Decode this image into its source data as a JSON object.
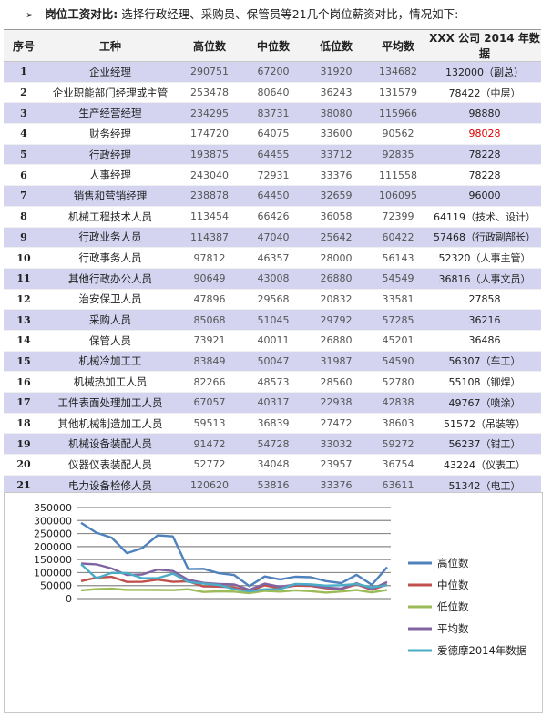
{
  "heading": {
    "bullet": "➢",
    "label": "岗位工资对比:",
    "text": "选择行政经理、采购员、保管员等21几个岗位薪资对比，情况如下:"
  },
  "table": {
    "headers": [
      "序号",
      "工种",
      "高位数",
      "中位数",
      "低位数",
      "平均数",
      "XXX 公司 2014 年数据"
    ],
    "rows": [
      [
        "1",
        "企业经理",
        "290751",
        "67200",
        "31920",
        "134682",
        "132000（副总）"
      ],
      [
        "2",
        "企业职能部门经理或主管",
        "253478",
        "80640",
        "36243",
        "131579",
        "78422（中层）"
      ],
      [
        "3",
        "生产经营经理",
        "234295",
        "83731",
        "38080",
        "115966",
        "98880"
      ],
      [
        "4",
        "财务经理",
        "174720",
        "64075",
        "33600",
        "90562",
        "98028"
      ],
      [
        "5",
        "行政经理",
        "193875",
        "64455",
        "33712",
        "92835",
        "78228"
      ],
      [
        "6",
        "人事经理",
        "243040",
        "72931",
        "33376",
        "111558",
        "78228"
      ],
      [
        "7",
        "销售和营销经理",
        "238878",
        "64450",
        "32659",
        "106095",
        "96000"
      ],
      [
        "8",
        "机械工程技术人员",
        "113454",
        "66426",
        "36058",
        "72399",
        "64119（技术、设计）"
      ],
      [
        "9",
        "行政业务人员",
        "114387",
        "47040",
        "25642",
        "60422",
        "57468（行政副部长）"
      ],
      [
        "10",
        "行政事务人员",
        "97812",
        "46357",
        "28000",
        "56143",
        "52320（人事主管）"
      ],
      [
        "11",
        "其他行政办公人员",
        "90649",
        "43008",
        "26880",
        "54549",
        "36816（人事文员）"
      ],
      [
        "12",
        "治安保卫人员",
        "47896",
        "29568",
        "20832",
        "33581",
        "27858"
      ],
      [
        "13",
        "采购人员",
        "85068",
        "51045",
        "29792",
        "57285",
        "36216"
      ],
      [
        "14",
        "保管人员",
        "73921",
        "40011",
        "26880",
        "45201",
        "36486"
      ],
      [
        "15",
        "机械冷加工工",
        "83849",
        "50047",
        "31987",
        "54590",
        "56307（车工）"
      ],
      [
        "16",
        "机械热加工人员",
        "82266",
        "48573",
        "28560",
        "52780",
        "55108（铆焊）"
      ],
      [
        "17",
        "工件表面处理加工人员",
        "67057",
        "40317",
        "22938",
        "42838",
        "49767（喷涂）"
      ],
      [
        "18",
        "其他机械制造加工人员",
        "59513",
        "36839",
        "27472",
        "38603",
        "51572（吊装等）"
      ],
      [
        "19",
        "机械设备装配人员",
        "91472",
        "54728",
        "33032",
        "59272",
        "56237（钳工）"
      ],
      [
        "20",
        "仪器仪表装配人员",
        "52772",
        "34048",
        "23957",
        "36754",
        "43224（仪表工）"
      ],
      [
        "21",
        "电力设备检修人员",
        "120620",
        "53816",
        "33376",
        "63611",
        "51342（电工）"
      ]
    ],
    "highlight_cell": {
      "row": 4,
      "col": 7,
      "color": "#e00000"
    },
    "odd_row_color": "#d4d4f1"
  },
  "chart_data": {
    "type": "line",
    "title": "",
    "xlabel": "",
    "ylabel": "",
    "ylim": [
      0,
      350000
    ],
    "yticks": [
      0,
      50000,
      100000,
      150000,
      200000,
      250000,
      300000,
      350000
    ],
    "x_count": 21,
    "grid": "horizontal",
    "legend_position": "right",
    "series": [
      {
        "name": "高位数",
        "color": "#4f81bd",
        "values": [
          290751,
          253478,
          234295,
          174720,
          193875,
          243040,
          238878,
          113454,
          114387,
          97812,
          90649,
          47896,
          85068,
          73921,
          83849,
          82266,
          67057,
          59513,
          91472,
          52772,
          120620
        ]
      },
      {
        "name": "中位数",
        "color": "#c0504d",
        "values": [
          67200,
          80640,
          83731,
          64075,
          64455,
          72931,
          64450,
          66426,
          47040,
          46357,
          43008,
          29568,
          51045,
          40011,
          50047,
          48573,
          40317,
          36839,
          54728,
          34048,
          53816
        ]
      },
      {
        "name": "低位数",
        "color": "#9bbb59",
        "values": [
          31920,
          36243,
          38080,
          33600,
          33712,
          33376,
          32659,
          36058,
          25642,
          28000,
          26880,
          20832,
          29792,
          26880,
          31987,
          28560,
          22938,
          27472,
          33032,
          23957,
          33376
        ]
      },
      {
        "name": "平均数",
        "color": "#8064a2",
        "values": [
          134682,
          131579,
          115966,
          90562,
          92835,
          111558,
          106095,
          72399,
          60422,
          56143,
          54549,
          33581,
          57285,
          45201,
          54590,
          52780,
          42838,
          38603,
          59272,
          36754,
          63611
        ]
      },
      {
        "name": "爱德摩2014年数据",
        "color": "#4bacc6",
        "values": [
          132000,
          78422,
          98880,
          98028,
          78228,
          78228,
          96000,
          64119,
          57468,
          52320,
          36816,
          27858,
          36216,
          36486,
          56307,
          55108,
          49767,
          51572,
          56237,
          43224,
          51342
        ]
      }
    ]
  }
}
